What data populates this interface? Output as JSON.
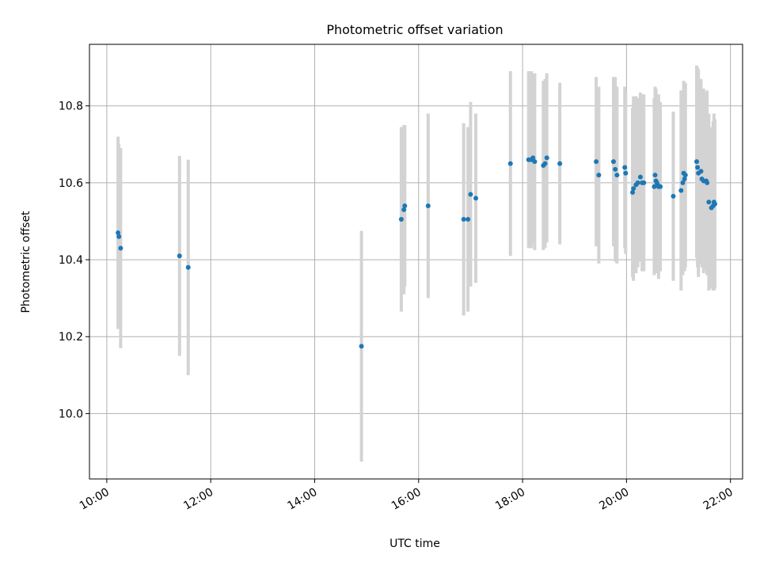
{
  "chart_data": {
    "type": "scatter",
    "title": "Photometric offset variation",
    "xlabel": "UTC time",
    "ylabel": "Photometric offset",
    "x_ticks": [
      "10:00",
      "12:00",
      "14:00",
      "16:00",
      "18:00",
      "20:00",
      "22:00"
    ],
    "y_ticks": [
      "10.0",
      "10.2",
      "10.4",
      "10.6",
      "10.8"
    ],
    "xlim": [
      "09:40",
      "22:14"
    ],
    "ylim": [
      9.83,
      10.96
    ],
    "grid": true,
    "colors": {
      "point": "#1f77b4",
      "errorbar": "#d3d3d3",
      "grid": "#b0b0b0"
    },
    "series": [
      {
        "x": [
          "10:13",
          "10:14",
          "10:16",
          "11:24",
          "11:34",
          "14:54",
          "15:40",
          "15:43",
          "15:44",
          "16:11",
          "16:52",
          "16:57",
          "17:00",
          "17:06",
          "17:46",
          "18:07",
          "18:10",
          "18:12",
          "18:14",
          "18:24",
          "18:26",
          "18:28",
          "18:43",
          "19:25",
          "19:28",
          "19:45",
          "19:47",
          "19:49",
          "19:58",
          "19:59",
          "20:07",
          "20:08",
          "20:11",
          "20:13",
          "20:16",
          "20:18",
          "20:20",
          "20:32",
          "20:33",
          "20:34",
          "20:35",
          "20:36",
          "20:37",
          "20:39",
          "20:54",
          "21:03",
          "21:05",
          "21:06",
          "21:07",
          "21:08",
          "21:21",
          "21:22",
          "21:23",
          "21:26",
          "21:27",
          "21:29",
          "21:32",
          "21:33",
          "21:35",
          "21:38",
          "21:40",
          "21:41",
          "21:42"
        ],
        "y": [
          10.47,
          10.46,
          10.43,
          10.41,
          10.38,
          10.175,
          10.505,
          10.53,
          10.54,
          10.54,
          10.505,
          10.505,
          10.57,
          10.56,
          10.65,
          10.66,
          10.66,
          10.665,
          10.655,
          10.645,
          10.65,
          10.665,
          10.65,
          10.655,
          10.62,
          10.655,
          10.635,
          10.62,
          10.64,
          10.625,
          10.575,
          10.585,
          10.595,
          10.6,
          10.615,
          10.6,
          10.6,
          10.59,
          10.62,
          10.605,
          10.6,
          10.595,
          10.59,
          10.59,
          10.565,
          10.58,
          10.6,
          10.625,
          10.61,
          10.62,
          10.655,
          10.64,
          10.625,
          10.63,
          10.61,
          10.605,
          10.605,
          10.6,
          10.55,
          10.535,
          10.54,
          10.55,
          10.545
        ],
        "err": [
          0.25,
          0.24,
          0.26,
          0.26,
          0.28,
          0.3,
          0.24,
          0.22,
          0.21,
          0.24,
          0.25,
          0.24,
          0.24,
          0.22,
          0.24,
          0.23,
          0.23,
          0.22,
          0.23,
          0.22,
          0.22,
          0.22,
          0.21,
          0.22,
          0.23,
          0.22,
          0.24,
          0.23,
          0.21,
          0.21,
          0.22,
          0.24,
          0.23,
          0.22,
          0.22,
          0.23,
          0.23,
          0.23,
          0.23,
          0.24,
          0.22,
          0.22,
          0.24,
          0.22,
          0.22,
          0.26,
          0.24,
          0.24,
          0.24,
          0.24,
          0.25,
          0.26,
          0.27,
          0.24,
          0.23,
          0.24,
          0.23,
          0.24,
          0.23,
          0.21,
          0.22,
          0.23,
          0.22
        ]
      }
    ]
  }
}
